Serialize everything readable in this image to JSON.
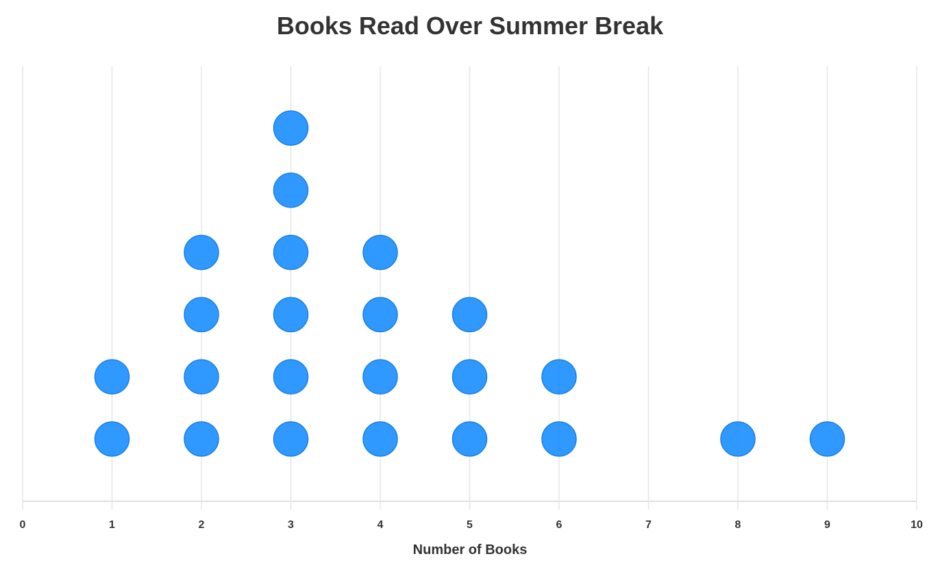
{
  "chart_data": {
    "type": "scatter",
    "subtype": "dot-plot",
    "title": "Books Read Over Summer Break",
    "xlabel": "Number of Books",
    "ylabel": "",
    "xlim": [
      0,
      10
    ],
    "x_ticks": [
      "0",
      "1",
      "2",
      "3",
      "4",
      "5",
      "6",
      "7",
      "8",
      "9",
      "10"
    ],
    "categories": [
      0,
      1,
      2,
      3,
      4,
      5,
      6,
      7,
      8,
      9,
      10
    ],
    "counts": [
      0,
      2,
      4,
      6,
      4,
      3,
      2,
      0,
      1,
      1,
      0
    ],
    "grid": "vertical",
    "dot_color": "#1e90ff",
    "dot_stroke": "#1a7ee6"
  }
}
